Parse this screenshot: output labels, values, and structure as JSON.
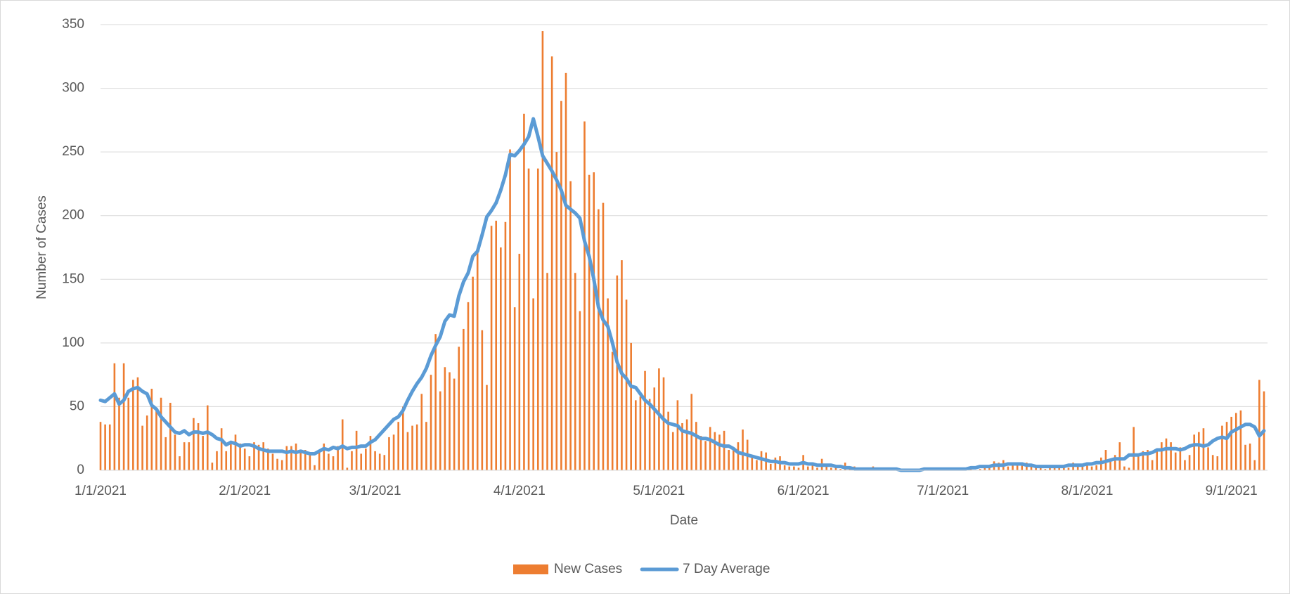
{
  "chart_data": {
    "type": "bar",
    "ylabel": "Number of Cases",
    "xlabel": "Date",
    "categories": [
      "1/1/2021",
      null,
      null,
      null,
      null,
      null,
      null,
      null,
      null,
      null,
      null,
      null,
      null,
      null,
      null,
      null,
      null,
      null,
      null,
      null,
      null,
      null,
      null,
      null,
      null,
      null,
      null,
      null,
      null,
      null,
      null,
      "2/1/2021",
      null,
      null,
      null,
      null,
      null,
      null,
      null,
      null,
      null,
      null,
      null,
      null,
      null,
      null,
      null,
      null,
      null,
      null,
      null,
      null,
      null,
      null,
      null,
      null,
      null,
      null,
      null,
      "3/1/2021",
      null,
      null,
      null,
      null,
      null,
      null,
      null,
      null,
      null,
      null,
      null,
      null,
      null,
      null,
      null,
      null,
      null,
      null,
      null,
      null,
      null,
      null,
      null,
      null,
      null,
      null,
      null,
      null,
      null,
      null,
      "4/1/2021",
      null,
      null,
      null,
      null,
      null,
      null,
      null,
      null,
      null,
      null,
      null,
      null,
      null,
      null,
      null,
      null,
      null,
      null,
      null,
      null,
      null,
      null,
      null,
      null,
      null,
      null,
      null,
      null,
      null,
      "5/1/2021",
      null,
      null,
      null,
      null,
      null,
      null,
      null,
      null,
      null,
      null,
      null,
      null,
      null,
      null,
      null,
      null,
      null,
      null,
      null,
      null,
      null,
      null,
      null,
      null,
      null,
      null,
      null,
      null,
      null,
      null,
      "6/1/2021",
      null,
      null,
      null,
      null,
      null,
      null,
      null,
      null,
      null,
      null,
      null,
      null,
      null,
      null,
      null,
      null,
      null,
      null,
      null,
      null,
      null,
      null,
      null,
      null,
      null,
      null,
      null,
      null,
      null,
      "7/1/2021",
      null,
      null,
      null,
      null,
      null,
      null,
      null,
      null,
      null,
      null,
      null,
      null,
      null,
      null,
      null,
      null,
      null,
      null,
      null,
      null,
      null,
      null,
      null,
      null,
      null,
      null,
      null,
      null,
      null,
      null,
      "8/1/2021",
      null,
      null,
      null,
      null,
      null,
      null,
      null,
      null,
      null,
      null,
      null,
      null,
      null,
      null,
      null,
      null,
      null,
      null,
      null,
      null,
      null,
      null,
      null,
      null,
      null,
      null,
      null,
      null,
      null,
      null,
      "9/1/2021",
      null,
      null,
      null,
      null,
      null,
      null,
      null
    ],
    "series": [
      {
        "name": "New Cases",
        "type": "bar",
        "color": "#ed7d31",
        "values": [
          38,
          36,
          36,
          84,
          57,
          84,
          57,
          71,
          73,
          35,
          43,
          64,
          48,
          57,
          26,
          53,
          28,
          11,
          22,
          22,
          41,
          37,
          27,
          51,
          6,
          15,
          33,
          15,
          22,
          28,
          21,
          17,
          11,
          22,
          20,
          22,
          17,
          13,
          9,
          8,
          19,
          19,
          21,
          14,
          16,
          12,
          4,
          14,
          21,
          13,
          11,
          19,
          40,
          2,
          15,
          31,
          13,
          17,
          27,
          15,
          13,
          12,
          26,
          28,
          38,
          50,
          30,
          35,
          36,
          60,
          38,
          75,
          107,
          62,
          81,
          77,
          72,
          97,
          111,
          132,
          152,
          172,
          110,
          67,
          192,
          196,
          175,
          195,
          252,
          128,
          170,
          280,
          237,
          135,
          237,
          345,
          155,
          325,
          250,
          290,
          312,
          227,
          155,
          125,
          274,
          232,
          234,
          205,
          210,
          135,
          93,
          153,
          165,
          134,
          100,
          55,
          58,
          78,
          56,
          65,
          80,
          73,
          46,
          30,
          55,
          37,
          40,
          60,
          38,
          27,
          23,
          34,
          30,
          28,
          31,
          16,
          16,
          22,
          32,
          24,
          11,
          8,
          15,
          14,
          5,
          10,
          11,
          4,
          3,
          3,
          2,
          12,
          3,
          5,
          2,
          9,
          4,
          2,
          3,
          1,
          6,
          2,
          3,
          1,
          2,
          1,
          3,
          1,
          2,
          1,
          0,
          1,
          0,
          0,
          0,
          1,
          1,
          0,
          1,
          0,
          0,
          1,
          0,
          1,
          2,
          1,
          1,
          2,
          0,
          1,
          2,
          3,
          7,
          6,
          8,
          3,
          5,
          5,
          6,
          6,
          4,
          3,
          2,
          1,
          3,
          2,
          4,
          3,
          2,
          6,
          4,
          5,
          6,
          3,
          4,
          10,
          16,
          8,
          12,
          22,
          3,
          2,
          34,
          12,
          15,
          16,
          8,
          17,
          22,
          25,
          22,
          14,
          18,
          8,
          12,
          28,
          30,
          33,
          18,
          12,
          11,
          35,
          38,
          42,
          45,
          47,
          20,
          21,
          8,
          71,
          62
        ]
      },
      {
        "name": "7 Day Average",
        "type": "line",
        "color": "#5b9bd5",
        "values": [
          55,
          54,
          57,
          60,
          52,
          55,
          62,
          64,
          65,
          62,
          60,
          51,
          48,
          42,
          38,
          34,
          30,
          29,
          31,
          28,
          30,
          30,
          29,
          30,
          28,
          25,
          24,
          20,
          22,
          21,
          19,
          20,
          20,
          19,
          17,
          16,
          15,
          15,
          15,
          15,
          14,
          15,
          14,
          15,
          14,
          13,
          13,
          15,
          17,
          16,
          18,
          17,
          19,
          17,
          18,
          18,
          19,
          19,
          22,
          24,
          28,
          32,
          36,
          40,
          42,
          47,
          55,
          62,
          68,
          73,
          80,
          90,
          98,
          105,
          117,
          122,
          121,
          137,
          148,
          155,
          168,
          172,
          185,
          199,
          204,
          210,
          220,
          232,
          248,
          247,
          251,
          256,
          262,
          276,
          262,
          247,
          241,
          235,
          228,
          220,
          208,
          205,
          202,
          198,
          180,
          168,
          150,
          128,
          118,
          113,
          100,
          85,
          76,
          72,
          66,
          65,
          60,
          55,
          52,
          48,
          44,
          40,
          37,
          36,
          35,
          31,
          30,
          29,
          27,
          25,
          25,
          24,
          22,
          20,
          19,
          19,
          17,
          14,
          13,
          12,
          11,
          10,
          9,
          8,
          7,
          7,
          6,
          6,
          5,
          5,
          5,
          6,
          5,
          5,
          4,
          4,
          4,
          4,
          3,
          3,
          2,
          2,
          1,
          1,
          1,
          1,
          1,
          1,
          1,
          1,
          1,
          1,
          0,
          0,
          0,
          0,
          0,
          1,
          1,
          1,
          1,
          1,
          1,
          1,
          1,
          1,
          1,
          2,
          2,
          3,
          3,
          3,
          4,
          4,
          4,
          5,
          5,
          5,
          5,
          4,
          4,
          3,
          3,
          3,
          3,
          3,
          3,
          3,
          4,
          4,
          4,
          4,
          5,
          5,
          6,
          6,
          7,
          8,
          9,
          9,
          9,
          12,
          12,
          12,
          13,
          13,
          14,
          16,
          16,
          17,
          17,
          17,
          16,
          17,
          19,
          20,
          20,
          19,
          20,
          23,
          25,
          26,
          25,
          30,
          32,
          34,
          36,
          36,
          34,
          27,
          31
        ]
      }
    ],
    "ylim": [
      0,
      350
    ],
    "yticks": [
      0,
      50,
      100,
      150,
      200,
      250,
      300,
      350
    ],
    "grid": true,
    "legend": "bottom"
  }
}
